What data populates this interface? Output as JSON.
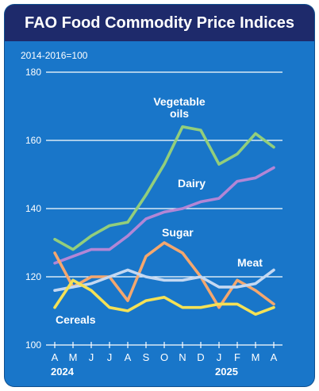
{
  "header": {
    "title": "FAO Food Commodity Price Indices"
  },
  "chart_data": {
    "type": "line",
    "subtitle": "2014-2016=100",
    "categories": [
      "A",
      "M",
      "J",
      "J",
      "A",
      "S",
      "O",
      "N",
      "D",
      "J",
      "F",
      "M",
      "A"
    ],
    "year_labels": [
      "2024",
      "2025"
    ],
    "yticks": [
      100,
      120,
      140,
      160,
      180
    ],
    "ylim": [
      100,
      180
    ],
    "grid": true,
    "series": [
      {
        "name": "Vegetable oils",
        "color": "#92ce7c",
        "values": [
          131,
          128,
          132,
          135,
          136,
          144,
          153,
          164,
          163,
          153,
          156,
          162,
          158
        ]
      },
      {
        "name": "Dairy",
        "color": "#b286d6",
        "values": [
          124,
          126,
          128,
          128,
          132,
          137,
          139,
          140,
          142,
          143,
          148,
          149,
          152
        ]
      },
      {
        "name": "Sugar",
        "color": "#f4a76e",
        "values": [
          127,
          117,
          120,
          120,
          113,
          126,
          130,
          127,
          120,
          111,
          119,
          116,
          112
        ]
      },
      {
        "name": "Meat",
        "color": "#c4d8f2",
        "values": [
          116,
          117,
          118,
          120,
          122,
          120,
          119,
          119,
          120,
          117,
          117,
          118,
          122
        ]
      },
      {
        "name": "Cereals",
        "color": "#f4e156",
        "values": [
          111,
          119,
          116,
          111,
          110,
          113,
          114,
          111,
          111,
          112,
          112,
          109,
          111
        ]
      }
    ]
  }
}
